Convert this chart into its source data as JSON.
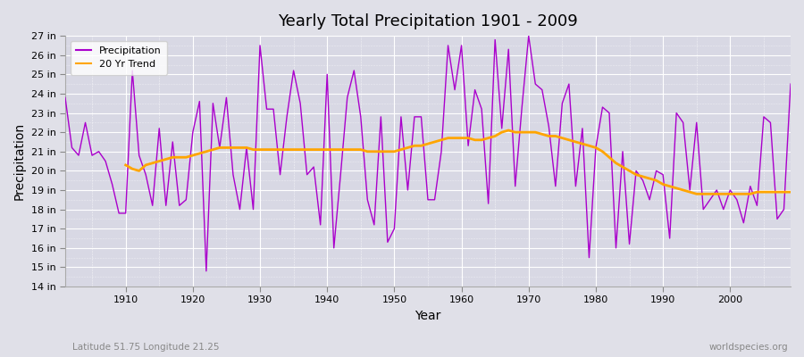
{
  "title": "Yearly Total Precipitation 1901 - 2009",
  "xlabel": "Year",
  "ylabel": "Precipitation",
  "subtitle": "Latitude 51.75 Longitude 21.25",
  "watermark": "worldspecies.org",
  "ylim": [
    14,
    27
  ],
  "ytick_labels": [
    "14 in",
    "15 in",
    "16 in",
    "17 in",
    "18 in",
    "19 in",
    "20 in",
    "21 in",
    "22 in",
    "23 in",
    "24 in",
    "25 in",
    "26 in",
    "27 in"
  ],
  "ytick_values": [
    14,
    15,
    16,
    17,
    18,
    19,
    20,
    21,
    22,
    23,
    24,
    25,
    26,
    27
  ],
  "precip_color": "#aa00cc",
  "trend_color": "#FFA500",
  "bg_color": "#E0E0E8",
  "plot_bg_color": "#D8D8E4",
  "years": [
    1901,
    1902,
    1903,
    1904,
    1905,
    1906,
    1907,
    1908,
    1909,
    1910,
    1911,
    1912,
    1913,
    1914,
    1915,
    1916,
    1917,
    1918,
    1919,
    1920,
    1921,
    1922,
    1923,
    1924,
    1925,
    1926,
    1927,
    1928,
    1929,
    1930,
    1931,
    1932,
    1933,
    1934,
    1935,
    1936,
    1937,
    1938,
    1939,
    1940,
    1941,
    1942,
    1943,
    1944,
    1945,
    1946,
    1947,
    1948,
    1949,
    1950,
    1951,
    1952,
    1953,
    1954,
    1955,
    1956,
    1957,
    1958,
    1959,
    1960,
    1961,
    1962,
    1963,
    1964,
    1965,
    1966,
    1967,
    1968,
    1969,
    1970,
    1971,
    1972,
    1973,
    1974,
    1975,
    1976,
    1977,
    1978,
    1979,
    1980,
    1981,
    1982,
    1983,
    1984,
    1985,
    1986,
    1987,
    1988,
    1989,
    1990,
    1991,
    1992,
    1993,
    1994,
    1995,
    1996,
    1997,
    1998,
    1999,
    2000,
    2001,
    2002,
    2003,
    2004,
    2005,
    2006,
    2007,
    2008,
    2009
  ],
  "precipitation": [
    23.8,
    21.2,
    20.8,
    22.5,
    20.8,
    21.0,
    20.5,
    19.3,
    17.8,
    17.8,
    25.2,
    20.8,
    19.8,
    18.2,
    22.2,
    18.2,
    21.5,
    18.2,
    18.5,
    22.0,
    23.6,
    14.8,
    23.5,
    21.2,
    23.8,
    19.8,
    18.0,
    21.2,
    18.0,
    26.5,
    23.2,
    23.2,
    19.8,
    22.8,
    25.2,
    23.5,
    19.8,
    20.2,
    17.2,
    25.0,
    16.0,
    19.8,
    23.8,
    25.2,
    22.8,
    18.5,
    17.2,
    22.8,
    16.3,
    17.0,
    22.8,
    19.0,
    22.8,
    22.8,
    18.5,
    18.5,
    21.0,
    26.5,
    24.2,
    26.5,
    21.3,
    24.2,
    23.2,
    18.3,
    26.8,
    22.2,
    26.3,
    19.2,
    23.3,
    27.0,
    24.5,
    24.2,
    22.3,
    19.2,
    23.5,
    24.5,
    19.2,
    22.2,
    15.5,
    21.2,
    23.3,
    23.0,
    16.0,
    21.0,
    16.2,
    20.0,
    19.5,
    18.5,
    20.0,
    19.8,
    16.5,
    23.0,
    22.5,
    19.0,
    22.5,
    18.0,
    18.5,
    19.0,
    18.0,
    19.0,
    18.5,
    17.3,
    19.2,
    18.2,
    22.8,
    22.5,
    17.5,
    18.0,
    24.5
  ],
  "trend_years": [
    1910,
    1911,
    1912,
    1913,
    1914,
    1915,
    1916,
    1917,
    1918,
    1919,
    1920,
    1921,
    1922,
    1923,
    1924,
    1925,
    1926,
    1927,
    1928,
    1929,
    1930,
    1931,
    1932,
    1933,
    1934,
    1935,
    1936,
    1937,
    1938,
    1939,
    1940,
    1941,
    1942,
    1943,
    1944,
    1945,
    1946,
    1947,
    1948,
    1949,
    1950,
    1951,
    1952,
    1953,
    1954,
    1955,
    1956,
    1957,
    1958,
    1959,
    1960,
    1961,
    1962,
    1963,
    1964,
    1965,
    1966,
    1967,
    1968,
    1969,
    1970,
    1971,
    1972,
    1973,
    1974,
    1975,
    1976,
    1977,
    1978,
    1979,
    1980,
    1981,
    1982,
    1983,
    1984,
    1985,
    1986,
    1987,
    1988,
    1989,
    1990,
    1991,
    1992,
    1993,
    1994,
    1995,
    1996,
    1997,
    1998,
    1999,
    2000,
    2001,
    2002,
    2003,
    2004,
    2005,
    2006,
    2007,
    2008,
    2009
  ],
  "trend": [
    20.3,
    20.1,
    20.0,
    20.3,
    20.4,
    20.5,
    20.6,
    20.7,
    20.7,
    20.7,
    20.8,
    20.9,
    21.0,
    21.1,
    21.2,
    21.2,
    21.2,
    21.2,
    21.2,
    21.1,
    21.1,
    21.1,
    21.1,
    21.1,
    21.1,
    21.1,
    21.1,
    21.1,
    21.1,
    21.1,
    21.1,
    21.1,
    21.1,
    21.1,
    21.1,
    21.1,
    21.0,
    21.0,
    21.0,
    21.0,
    21.0,
    21.1,
    21.2,
    21.3,
    21.3,
    21.4,
    21.5,
    21.6,
    21.7,
    21.7,
    21.7,
    21.7,
    21.6,
    21.6,
    21.7,
    21.8,
    22.0,
    22.1,
    22.0,
    22.0,
    22.0,
    22.0,
    21.9,
    21.8,
    21.8,
    21.7,
    21.6,
    21.5,
    21.4,
    21.3,
    21.2,
    21.0,
    20.7,
    20.4,
    20.2,
    20.0,
    19.8,
    19.7,
    19.6,
    19.5,
    19.3,
    19.2,
    19.1,
    19.0,
    18.9,
    18.8,
    18.8,
    18.8,
    18.8,
    18.8,
    18.8,
    18.8,
    18.8,
    18.8,
    18.9,
    18.9,
    18.9,
    18.9,
    18.9,
    18.9
  ]
}
